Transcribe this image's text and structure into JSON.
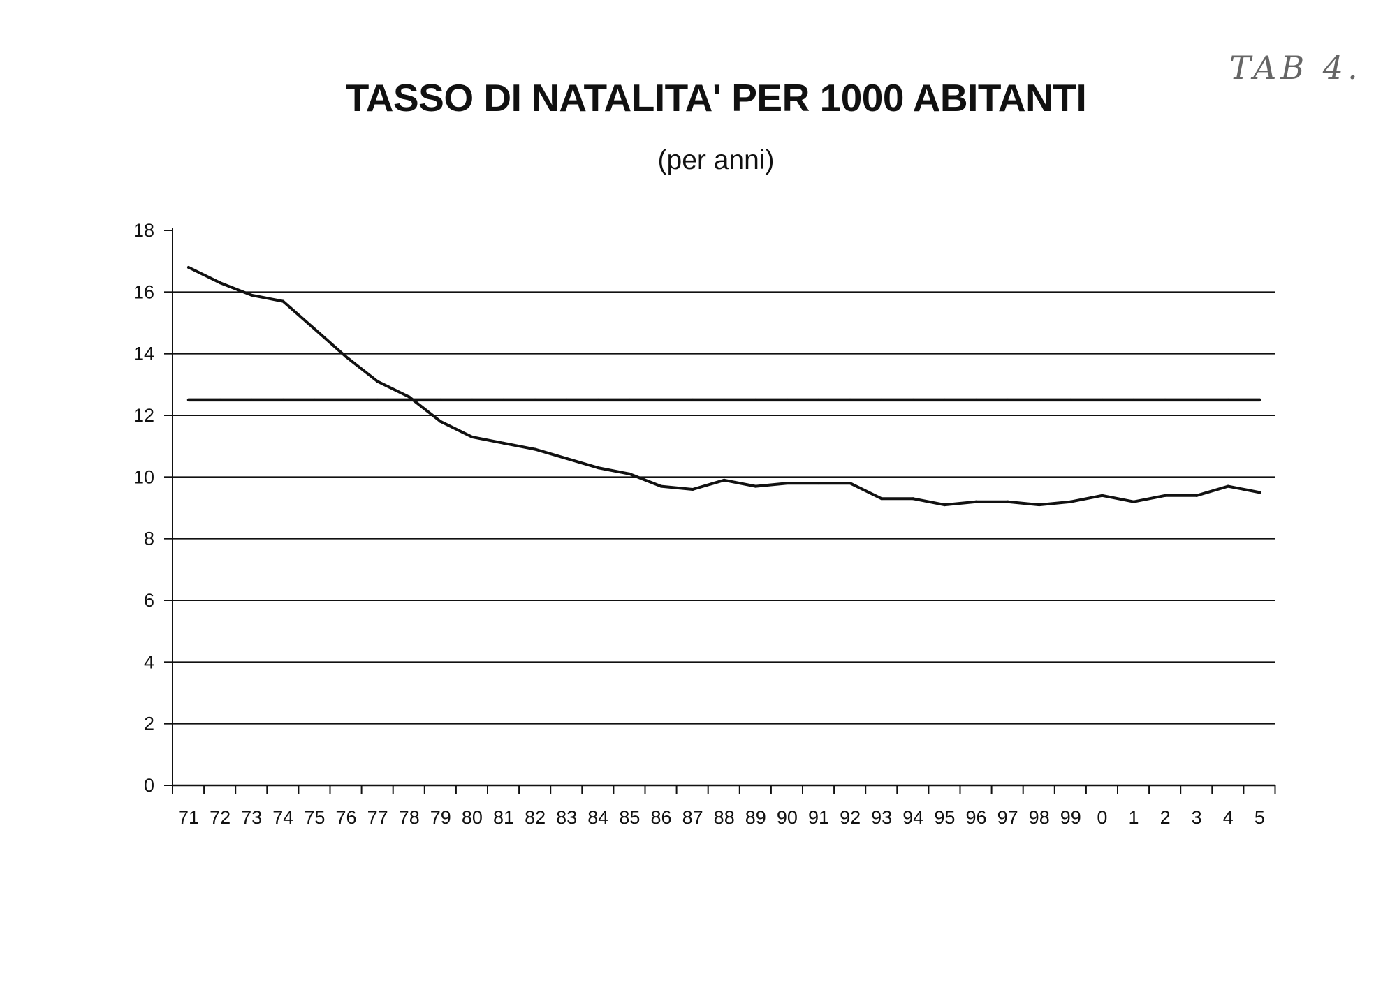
{
  "page": {
    "title": "TASSO DI NATALITA' PER 1000 ABITANTI",
    "subtitle": "(per anni)",
    "corner_annotation": "TAB 4."
  },
  "chart_data": {
    "type": "line",
    "title": "TASSO DI NATALITA' PER 1000 ABITANTI",
    "subtitle": "(per anni)",
    "xlabel": "",
    "ylabel": "",
    "categories": [
      "71",
      "72",
      "73",
      "74",
      "75",
      "76",
      "77",
      "78",
      "79",
      "80",
      "81",
      "82",
      "83",
      "84",
      "85",
      "86",
      "87",
      "88",
      "89",
      "90",
      "91",
      "92",
      "93",
      "94",
      "95",
      "96",
      "97",
      "98",
      "99",
      "0",
      "1",
      "2",
      "3",
      "4",
      "5"
    ],
    "series": [
      {
        "values": [
          16.8,
          16.3,
          15.9,
          15.7,
          14.8,
          13.9,
          13.1,
          12.6,
          11.8,
          11.3,
          11.1,
          10.9,
          10.6,
          10.3,
          10.1,
          9.7,
          9.6,
          9.9,
          9.7,
          9.8,
          9.8,
          9.8,
          9.3,
          9.3,
          9.1,
          9.2,
          9.2,
          9.1,
          9.2,
          9.4,
          9.2,
          9.4,
          9.4,
          9.7,
          9.5
        ]
      },
      {
        "values": [
          12.5,
          12.5,
          12.5,
          12.5,
          12.5,
          12.5,
          12.5,
          12.5,
          12.5,
          12.5,
          12.5,
          12.5,
          12.5,
          12.5,
          12.5,
          12.5,
          12.5,
          12.5,
          12.5,
          12.5,
          12.5,
          12.5,
          12.5,
          12.5,
          12.5,
          12.5,
          12.5,
          12.5,
          12.5,
          12.5,
          12.5,
          12.5,
          12.5,
          12.5,
          12.5
        ]
      }
    ],
    "ylim": [
      0,
      18
    ],
    "yticks": [
      0,
      2,
      4,
      6,
      8,
      10,
      12,
      14,
      16,
      18
    ],
    "grid": true,
    "legend": "none",
    "colors": {
      "line": "#111111",
      "grid": "#111111"
    }
  }
}
